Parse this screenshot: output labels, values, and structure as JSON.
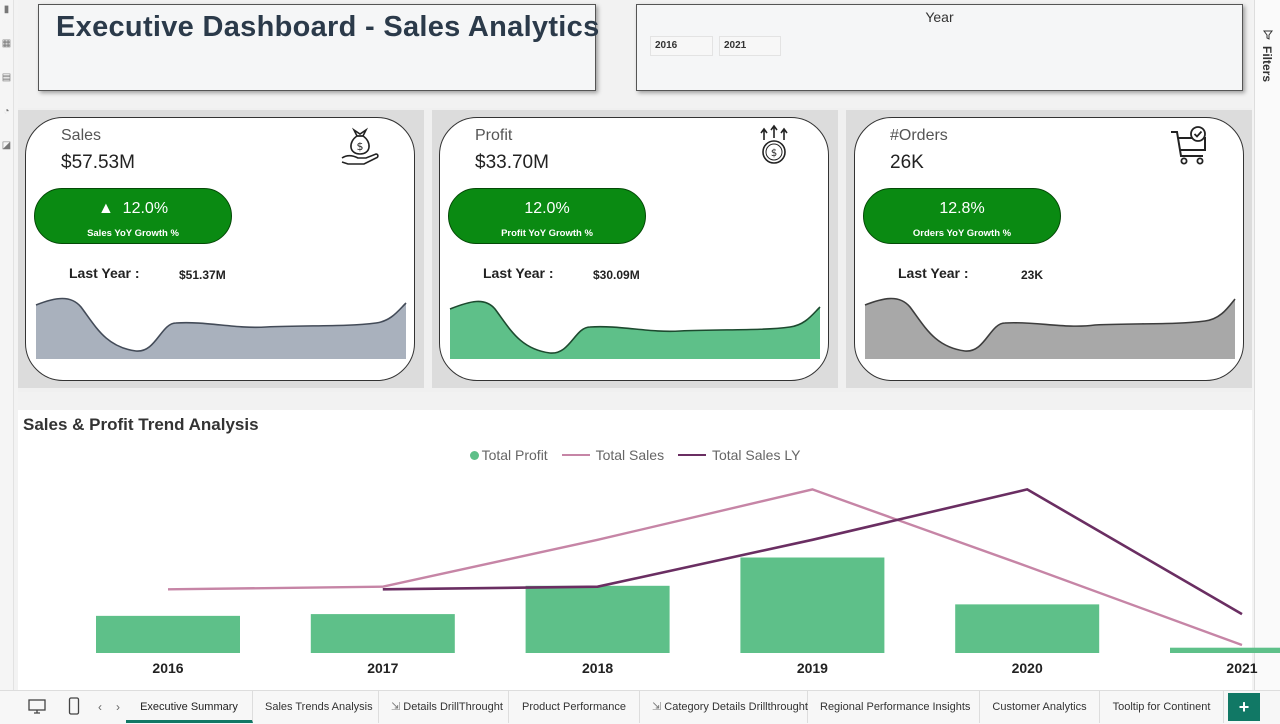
{
  "header": {
    "title": "Executive Dashboard - Sales Analytics"
  },
  "year_slicer": {
    "title": "Year",
    "from": "2016",
    "to": "2021"
  },
  "filters_pane": {
    "label": "Filters"
  },
  "kpis": [
    {
      "label": "Sales",
      "value": "$57.53M",
      "growth": "12.0%",
      "growth_arrow": "▲",
      "growth_label": "Sales YoY Growth %",
      "ly_label": "Last Year :",
      "ly_value": "$51.37M",
      "icon": "money-bag-hand-icon",
      "spark_color": "#a9b1bd"
    },
    {
      "label": "Profit",
      "value": "$33.70M",
      "growth": "12.0%",
      "growth_arrow": "",
      "growth_label": "Profit YoY Growth %",
      "ly_label": "Last Year :",
      "ly_value": "$30.09M",
      "icon": "dollar-coin-growth-icon",
      "spark_color": "#5ec089"
    },
    {
      "label": "#Orders",
      "value": "26K",
      "growth": "12.8%",
      "growth_arrow": "",
      "growth_label": "Orders YoY Growth %",
      "ly_label": "Last Year :",
      "ly_value": "23K",
      "icon": "cart-check-icon",
      "spark_color": "#a8a8a8"
    }
  ],
  "trend": {
    "title": "Sales & Profit Trend Analysis",
    "legend": [
      {
        "name": "Total Profit",
        "color": "#5ec089",
        "style": "dot"
      },
      {
        "name": "Total Sales",
        "color": "#c685a6",
        "style": "line"
      },
      {
        "name": "Total Sales LY",
        "color": "#6a2e62",
        "style": "line"
      }
    ]
  },
  "chart_data": {
    "type": "bar",
    "categories": [
      "2016",
      "2017",
      "2018",
      "2019",
      "2020",
      "2021"
    ],
    "series": [
      {
        "name": "Total Profit",
        "type": "bar",
        "values": [
          4.2,
          4.4,
          7.6,
          10.8,
          5.5,
          0.6
        ]
      },
      {
        "name": "Total Sales",
        "type": "line",
        "values": [
          7.2,
          7.5,
          12.8,
          18.5,
          9.8,
          0.9
        ]
      },
      {
        "name": "Total Sales LY",
        "type": "line",
        "values": [
          null,
          7.2,
          7.5,
          12.8,
          18.5,
          4.4
        ]
      }
    ],
    "title": "Sales & Profit Trend Analysis",
    "legend": "top-center",
    "grid": false
  },
  "tabs": [
    {
      "label": "Executive Summary",
      "active": true
    },
    {
      "label": "Sales Trends Analysis",
      "active": false
    },
    {
      "label": "Details DrillThrought",
      "active": false,
      "icon": "drillthrough-icon"
    },
    {
      "label": "Product Performance",
      "active": false
    },
    {
      "label": "Category Details Drillthrought",
      "active": false,
      "icon": "drillthrough-icon"
    },
    {
      "label": "Regional Performance Insights",
      "active": false
    },
    {
      "label": "Customer Analytics",
      "active": false
    },
    {
      "label": "Tooltip for Continent",
      "active": false
    }
  ],
  "tab_controls": {
    "add": "+",
    "prev": "‹",
    "next": "›"
  },
  "colors": {
    "accent": "#117865",
    "growth_pill": "#0a8a12"
  }
}
